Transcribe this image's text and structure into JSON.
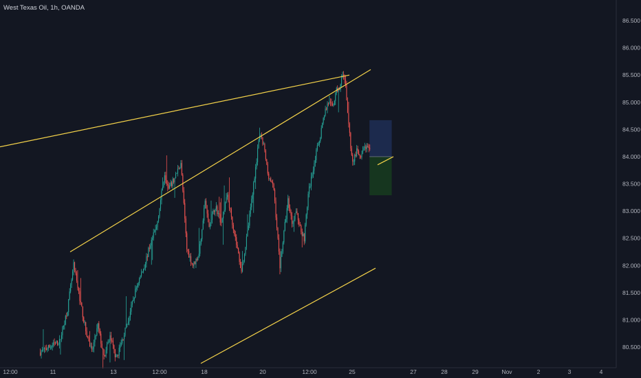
{
  "chart_title": "West Texas Oil, 1h, OANDA",
  "colors": {
    "background": "#131722",
    "up": "#26a69a",
    "down": "#ef5350",
    "trendline": "#f5d34a",
    "target_zone": "#1c2a4d",
    "stop_zone": "#16361f",
    "axis_text": "#b2b5be"
  },
  "chart_data": {
    "type": "candlestick",
    "symbol": "West Texas Oil",
    "timeframe": "1h",
    "source": "OANDA",
    "y_ticks": [
      "86.500",
      "86.000",
      "85.500",
      "85.000",
      "84.500",
      "84.000",
      "83.500",
      "83.000",
      "82.500",
      "82.000",
      "81.500",
      "81.000",
      "80.500"
    ],
    "ylim": [
      80.2,
      86.8
    ],
    "x_ticks": [
      "12:00",
      "11",
      "13",
      "12:00",
      "18",
      "20",
      "12:00",
      "25",
      "27",
      "28",
      "29",
      "Nov",
      "2",
      "3",
      "4"
    ],
    "price_path": [
      [
        0,
        80.4
      ],
      [
        20,
        80.6
      ],
      [
        28,
        81.2
      ],
      [
        34,
        82.0
      ],
      [
        40,
        81.4
      ],
      [
        46,
        80.8
      ],
      [
        52,
        80.4
      ],
      [
        58,
        80.9
      ],
      [
        64,
        80.3
      ],
      [
        70,
        80.7
      ],
      [
        76,
        80.3
      ],
      [
        80,
        80.5
      ],
      [
        88,
        81.0
      ],
      [
        96,
        81.6
      ],
      [
        104,
        82.0
      ],
      [
        110,
        82.4
      ],
      [
        116,
        82.7
      ],
      [
        120,
        83.2
      ],
      [
        124,
        83.7
      ],
      [
        128,
        83.4
      ],
      [
        134,
        83.6
      ],
      [
        140,
        83.9
      ],
      [
        146,
        82.3
      ],
      [
        152,
        82.0
      ],
      [
        158,
        82.2
      ],
      [
        164,
        83.2
      ],
      [
        168,
        82.7
      ],
      [
        174,
        83.1
      ],
      [
        180,
        82.8
      ],
      [
        186,
        83.3
      ],
      [
        190,
        82.9
      ],
      [
        196,
        82.3
      ],
      [
        200,
        81.9
      ],
      [
        206,
        82.6
      ],
      [
        214,
        83.8
      ],
      [
        218,
        84.4
      ],
      [
        222,
        84.2
      ],
      [
        226,
        83.7
      ],
      [
        232,
        83.4
      ],
      [
        238,
        82.0
      ],
      [
        242,
        82.6
      ],
      [
        246,
        83.2
      ],
      [
        250,
        82.8
      ],
      [
        254,
        83.0
      ],
      [
        258,
        82.7
      ],
      [
        262,
        82.5
      ],
      [
        266,
        83.3
      ],
      [
        272,
        83.9
      ],
      [
        278,
        84.4
      ],
      [
        282,
        84.8
      ],
      [
        286,
        85.0
      ],
      [
        290,
        84.9
      ],
      [
        294,
        85.2
      ],
      [
        298,
        85.3
      ],
      [
        300,
        85.5
      ],
      [
        303,
        85.3
      ],
      [
        306,
        84.6
      ],
      [
        308,
        84.2
      ],
      [
        310,
        83.9
      ],
      [
        314,
        84.1
      ],
      [
        318,
        83.95
      ],
      [
        322,
        84.2
      ],
      [
        326,
        84.1
      ]
    ],
    "trendlines": [
      {
        "from": [
          0,
          84.18
        ],
        "to": [
          250,
          85.5
        ]
      },
      {
        "from": [
          44,
          82.25
        ],
        "to": [
          301,
          85.6
        ]
      },
      {
        "from": [
          130,
          80.2
        ],
        "to": [
          312,
          81.95
        ]
      },
      {
        "from": [
          306,
          83.85
        ],
        "to": [
          322,
          84.0
        ]
      }
    ],
    "position": {
      "entry": 84.0,
      "target": 84.67,
      "stop": 83.29,
      "start_bar": 326,
      "end_bar": 348
    }
  }
}
